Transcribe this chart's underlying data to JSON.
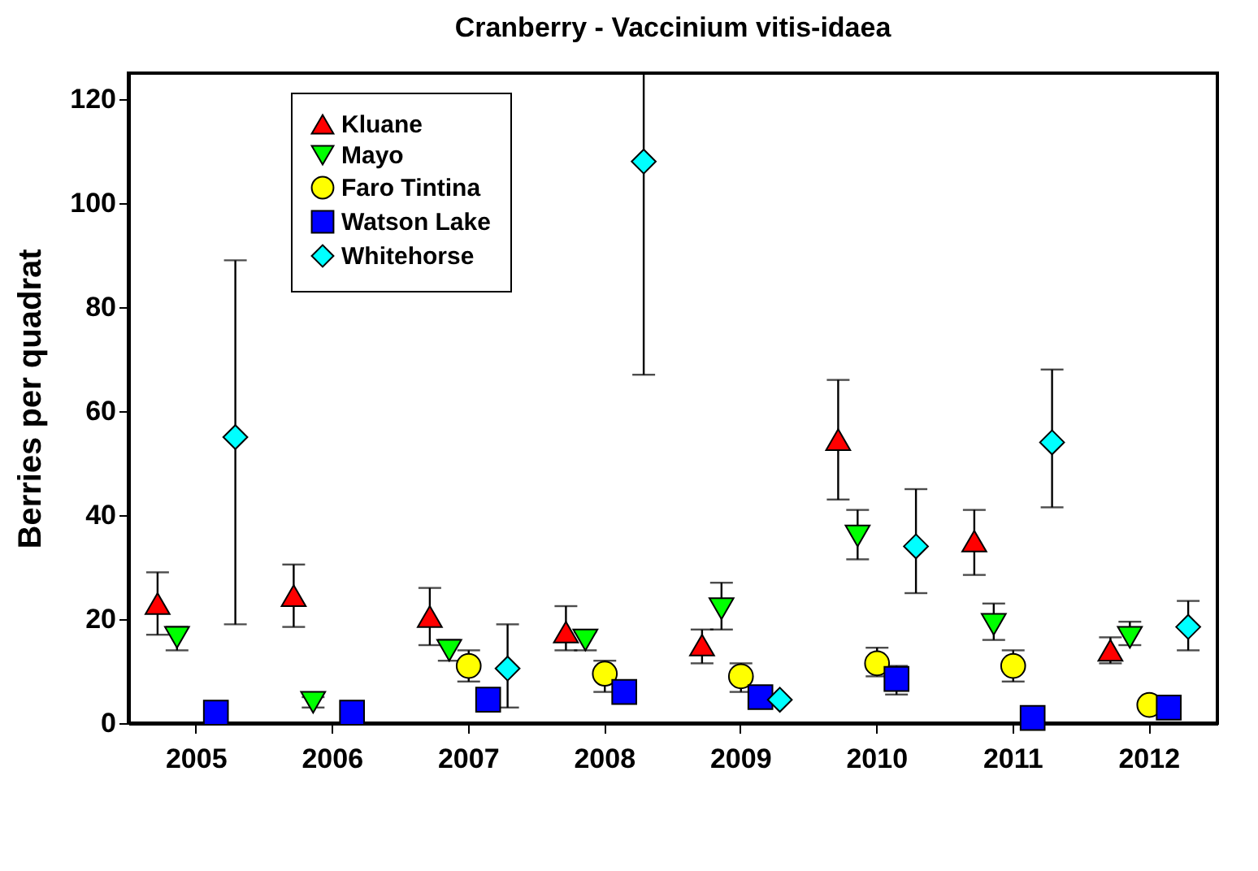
{
  "chart_data": {
    "type": "scatter",
    "title": "Cranberry - Vaccinium vitis-idaea",
    "ylabel": "Berries per quadrat",
    "categories": [
      "2005",
      "2006",
      "2007",
      "2008",
      "2009",
      "2010",
      "2011",
      "2012"
    ],
    "ylim": [
      0,
      125
    ],
    "yticks": [
      0,
      20,
      40,
      60,
      80,
      100,
      120
    ],
    "legend": "top left",
    "grid": false,
    "series": [
      {
        "name": "Kluane",
        "color": "#ff0000",
        "marker": "triangle",
        "values": [
          23,
          24.5,
          20.5,
          17.5,
          15,
          54.5,
          35,
          14
        ],
        "errors": [
          [
            17,
            29
          ],
          [
            18.5,
            30.5
          ],
          [
            15,
            26
          ],
          [
            14,
            22.5
          ],
          [
            11.5,
            18
          ],
          [
            43,
            66
          ],
          [
            28.5,
            41
          ],
          [
            11.5,
            16.5
          ]
        ]
      },
      {
        "name": "Mayo",
        "color": "#00ff00",
        "marker": "triangle-down",
        "values": [
          16.5,
          4,
          14,
          16,
          22,
          36,
          19,
          16.5
        ],
        "errors": [
          [
            14,
            18.5
          ],
          [
            3,
            5
          ],
          [
            12,
            16
          ],
          [
            14,
            17.5
          ],
          [
            18,
            27
          ],
          [
            31.5,
            41
          ],
          [
            16,
            23
          ],
          [
            15,
            19.5
          ]
        ]
      },
      {
        "name": "Faro Tintina",
        "color": "#ffff00",
        "marker": "circle",
        "values": [
          null,
          null,
          11,
          9.5,
          9,
          11.5,
          11,
          3.5
        ],
        "errors": [
          null,
          null,
          [
            8,
            14
          ],
          [
            6,
            12
          ],
          [
            6,
            11.5
          ],
          [
            9,
            14.5
          ],
          [
            8,
            14
          ],
          null
        ]
      },
      {
        "name": "Watson Lake",
        "color": "#0000ff",
        "marker": "square",
        "values": [
          2,
          2,
          4.5,
          6,
          5,
          8.5,
          1,
          3
        ],
        "errors": [
          null,
          null,
          null,
          null,
          null,
          [
            5.5,
            11
          ],
          null,
          null
        ]
      },
      {
        "name": "Whitehorse",
        "color": "#00ffff",
        "marker": "diamond",
        "values": [
          55,
          null,
          10.5,
          108,
          4.5,
          34,
          54,
          18.5
        ],
        "errors": [
          [
            19,
            89
          ],
          null,
          [
            3,
            19
          ],
          [
            67,
            125
          ],
          null,
          [
            25,
            45
          ],
          [
            41.5,
            68
          ],
          [
            14,
            23.5
          ]
        ]
      }
    ]
  }
}
